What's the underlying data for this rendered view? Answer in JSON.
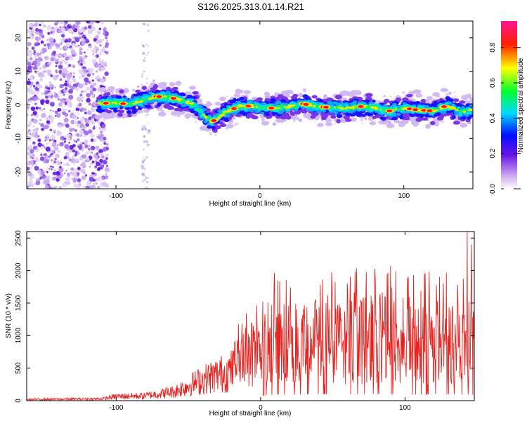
{
  "title": "S126.2025.313.01.14.R21",
  "chart_data": [
    {
      "type": "heatmap",
      "name": "spectrogram",
      "xlabel": "Height of straight line (km)",
      "ylabel": "Frequency (Hz)",
      "xlim": [
        -162,
        148
      ],
      "ylim": [
        -25,
        25
      ],
      "x_ticks": [
        -100,
        0,
        100
      ],
      "x_tick_labels": [
        "-100",
        "0",
        "100"
      ],
      "y_ticks": [
        -20,
        -10,
        0,
        10,
        20
      ],
      "y_tick_labels": [
        "-20",
        "-10",
        "0",
        "10",
        "20"
      ],
      "noise_region_km": [
        -162,
        -110
      ],
      "dashed_band_km": [
        -82,
        -77
      ],
      "ridge_km": [
        -112,
        -100,
        -90,
        -80,
        -72,
        -62,
        -52,
        -45,
        -38,
        -33,
        -25,
        -15,
        -5,
        0,
        10,
        20,
        30,
        40,
        50,
        60,
        70,
        80,
        90,
        100,
        110,
        120,
        130,
        140,
        148
      ],
      "ridge_hz": [
        0.5,
        0.5,
        0.2,
        1.5,
        2.5,
        2.2,
        1.0,
        0.0,
        -3.5,
        -5.0,
        -2.5,
        -0.5,
        -0.3,
        -0.8,
        -1.0,
        -0.5,
        0.3,
        -0.5,
        -0.8,
        -1.0,
        -0.5,
        -0.8,
        -1.8,
        -1.0,
        -1.5,
        -1.8,
        -0.2,
        -2.0,
        -1.5
      ],
      "colorbar": {
        "label": "Normalized spectral amplitude",
        "range": [
          0.0,
          0.95
        ],
        "ticks": [
          0.0,
          0.2,
          0.4,
          0.6,
          0.8
        ],
        "tick_labels": [
          "0.0",
          "0.2",
          "0.4",
          "0.6",
          "0.8"
        ],
        "colors": [
          "#ffffff",
          "#8a2be2",
          "#0000ff",
          "#00ffff",
          "#00ff00",
          "#ffff00",
          "#ff0000",
          "#ff1493"
        ]
      }
    },
    {
      "type": "line",
      "name": "snr",
      "xlabel": "Height of straight line (km)",
      "ylabel": "SNR (10 * v/v)",
      "xlim": [
        -162,
        148
      ],
      "ylim": [
        0,
        2600
      ],
      "x_ticks": [
        -100,
        0,
        100
      ],
      "x_tick_labels": [
        "-100",
        "0",
        "100"
      ],
      "y_ticks": [
        0,
        500,
        1000,
        1500,
        2000,
        2500
      ],
      "y_tick_labels": [
        "0",
        "500",
        "1000",
        "1500",
        "2000",
        "2500"
      ],
      "color": "#e8221e",
      "envelope_x": [
        -162,
        -110,
        -100,
        -80,
        -60,
        -40,
        -20,
        0,
        10,
        20,
        40,
        60,
        80,
        100,
        120,
        140,
        148
      ],
      "envelope_y": [
        20,
        30,
        70,
        80,
        150,
        350,
        500,
        800,
        950,
        900,
        1000,
        950,
        1050,
        900,
        1000,
        950,
        900
      ],
      "highlights": [
        {
          "x": 12,
          "y": 1850
        },
        {
          "x": 62,
          "y": 1900
        },
        {
          "x": 90,
          "y": 2070
        },
        {
          "x": 124,
          "y": 1900
        },
        {
          "x": 143,
          "y": 2600
        },
        {
          "x": 146,
          "y": 2400
        }
      ]
    }
  ]
}
